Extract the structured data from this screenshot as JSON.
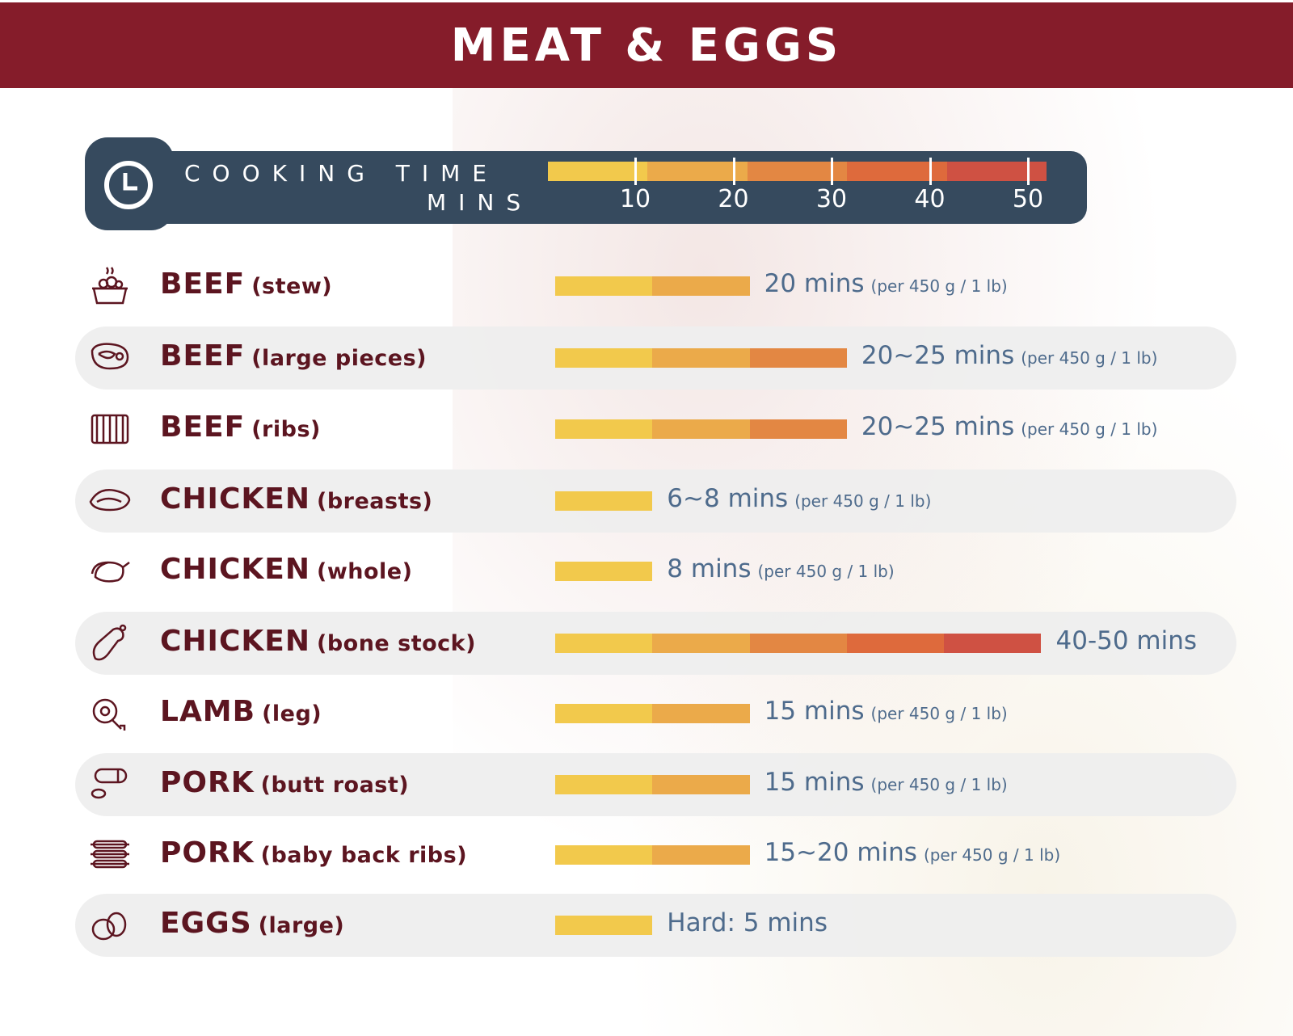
{
  "title": "MEAT & EGGS",
  "legend": {
    "title": "COOKING TIME",
    "unit": "MINS",
    "ticks": [
      "10",
      "20",
      "30",
      "40",
      "50"
    ],
    "icon": "clock-icon"
  },
  "colors": {
    "header": "#851C2A",
    "legend_bg": "#364A5E",
    "label": "#5C1520",
    "value": "#4E6B8C",
    "segments": [
      "#F2C94C",
      "#EBAA4A",
      "#E38743",
      "#DE6A3C",
      "#CF5143"
    ]
  },
  "chart_data": {
    "type": "bar",
    "orientation": "horizontal",
    "xlim": [
      0,
      50
    ],
    "categories": [
      "BEEF (stew)",
      "BEEF (large pieces)",
      "BEEF (ribs)",
      "CHICKEN (breasts)",
      "CHICKEN (whole)",
      "CHICKEN (bone stock)",
      "LAMB (leg)",
      "PORK (butt roast)",
      "PORK (baby back ribs)",
      "EGGS (large)"
    ],
    "values": [
      20,
      30,
      30,
      10,
      10,
      50,
      20,
      20,
      20,
      10
    ]
  },
  "rows": [
    {
      "name": "BEEF",
      "sub": "(stew)",
      "value": "20 mins",
      "per": "(per 450 g / 1 lb)",
      "icon": "stew-pot-icon"
    },
    {
      "name": "BEEF",
      "sub": "(large pieces)",
      "value": "20~25 mins",
      "per": "(per 450 g / 1 lb)",
      "icon": "steak-icon"
    },
    {
      "name": "BEEF",
      "sub": "(ribs)",
      "value": "20~25 mins",
      "per": "(per 450 g / 1 lb)",
      "icon": "ribs-icon"
    },
    {
      "name": "CHICKEN",
      "sub": "(breasts)",
      "value": "6~8 mins",
      "per": "(per 450 g / 1 lb)",
      "icon": "chicken-breast-icon"
    },
    {
      "name": "CHICKEN",
      "sub": "(whole)",
      "value": "8 mins",
      "per": "(per 450 g / 1 lb)",
      "icon": "whole-chicken-icon"
    },
    {
      "name": "CHICKEN",
      "sub": "(bone stock)",
      "value": "40-50 mins",
      "per": "",
      "icon": "drumstick-icon"
    },
    {
      "name": "LAMB",
      "sub": "(leg)",
      "value": "15 mins",
      "per": "(per 450 g / 1 lb)",
      "icon": "lamb-leg-icon"
    },
    {
      "name": "PORK",
      "sub": "(butt roast)",
      "value": "15 mins",
      "per": "(per 450 g / 1 lb)",
      "icon": "sausage-icon"
    },
    {
      "name": "PORK",
      "sub": "(baby back ribs)",
      "value": "15~20 mins",
      "per": "(per 450 g / 1 lb)",
      "icon": "pork-ribs-icon"
    },
    {
      "name": "EGGS",
      "sub": "(large)",
      "value": "Hard: 5 mins",
      "per": "",
      "icon": "eggs-icon"
    }
  ]
}
